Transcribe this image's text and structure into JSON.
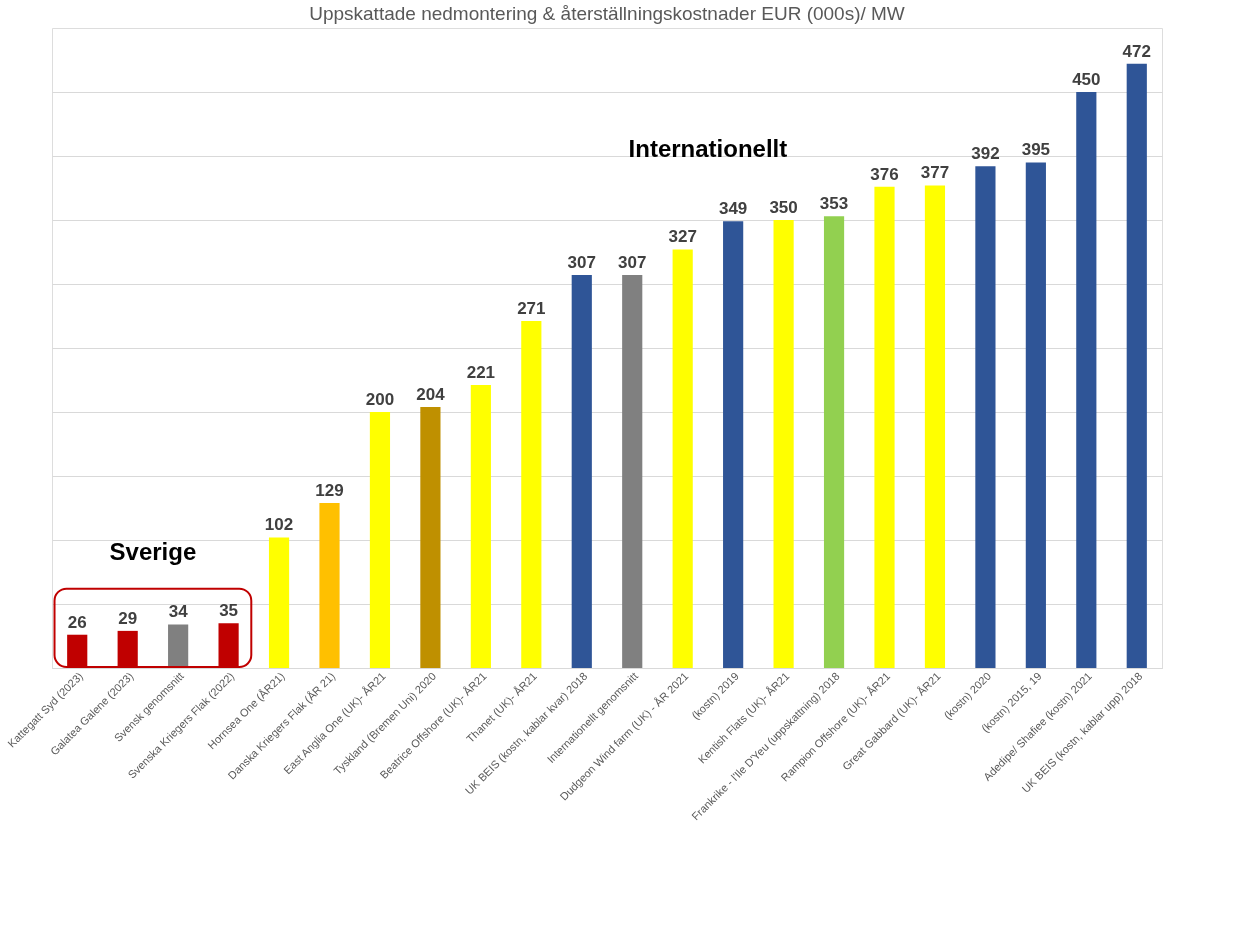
{
  "chart_data": {
    "type": "bar",
    "title": "Uppskattade nedmontering & återställningskostnader EUR (000s)/ MW",
    "categories": [
      "Kattegatt Syd (2023)",
      "Galatea Galene (2023)",
      "Svensk genomsnitt",
      "Svenska Kriegers Flak (2022)",
      "Hornsea One (ÅR21)",
      "Danska Kriegers Flak (ÅR 21)",
      "East Anglia One (UK)- ÅR21",
      "Tyskland (Bremen Uni) 2020",
      "Beatrice Offshore (UK)- ÅR21",
      "Thanet (UK)- ÅR21",
      "UK BEIS (kostn, kablar kvar) 2018",
      "Internationellt genomsnitt",
      "Dudgeon Wind farm (UK) - ÅR 2021",
      "(kostn) 2019",
      "Kentish Flats (UK)- ÅR21",
      "Frankrike - l'Ile D'Yeu (uppskattning) 2018",
      "Rampion Offshore (UK)- ÅR21",
      "Great Gabbard (UK)- ÅR21",
      "(kostn) 2020",
      "(kostn) 2015, 19",
      "Adedipe/ Shafiee (kostn) 2021",
      "UK BEIS (kostn, kablar upp) 2018"
    ],
    "values": [
      26,
      29,
      34,
      35,
      102,
      129,
      200,
      204,
      221,
      271,
      307,
      307,
      327,
      349,
      350,
      353,
      376,
      377,
      392,
      395,
      450,
      472
    ],
    "colors": [
      "#c00000",
      "#c00000",
      "#808080",
      "#c00000",
      "#ffff00",
      "#ffc000",
      "#ffff00",
      "#bf9000",
      "#ffff00",
      "#ffff00",
      "#2f5597",
      "#808080",
      "#ffff00",
      "#2f5597",
      "#ffff00",
      "#92d050",
      "#ffff00",
      "#ffff00",
      "#2f5597",
      "#2f5597",
      "#2f5597",
      "#2f5597"
    ],
    "ylim": [
      0,
      500
    ],
    "yticks": [
      {
        "value": 0,
        "label": null
      },
      {
        "value": 50,
        "label": null
      },
      {
        "value": 100,
        "label": null
      },
      {
        "value": 150,
        "label": null
      },
      {
        "value": 200,
        "label": null
      },
      {
        "value": 250,
        "label": null
      },
      {
        "value": 300,
        "label": null
      },
      {
        "value": 350,
        "label": null
      },
      {
        "value": 400,
        "label": null
      },
      {
        "value": 450,
        "label": null
      }
    ],
    "grid": "y",
    "tick_labels": "x",
    "data_labels": true,
    "annotations": [
      "Sverige",
      "Internationellt"
    ]
  }
}
